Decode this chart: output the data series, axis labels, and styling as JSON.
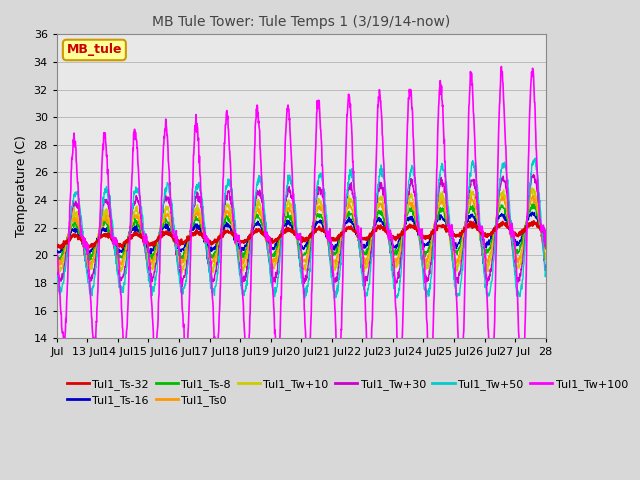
{
  "title": "MB Tule Tower: Tule Temps 1 (3/19/14-now)",
  "ylabel": "Temperature (C)",
  "ylim": [
    14,
    36
  ],
  "yticks": [
    14,
    16,
    18,
    20,
    22,
    24,
    26,
    28,
    30,
    32,
    34,
    36
  ],
  "xlabel_ticks": [
    "Jul",
    "13 Jul",
    "14 Jul",
    "15 Jul",
    "16 Jul",
    "17 Jul",
    "18 Jul",
    "19 Jul",
    "20 Jul",
    "21 Jul",
    "22 Jul",
    "23 Jul",
    "24 Jul",
    "25 Jul",
    "26 Jul",
    "27 Jul",
    "28"
  ],
  "series": [
    {
      "label": "Tul1_Ts-32",
      "color": "#dd0000",
      "lw": 1.5,
      "zorder": 6
    },
    {
      "label": "Tul1_Ts-16",
      "color": "#0000cc",
      "lw": 1.0,
      "zorder": 4
    },
    {
      "label": "Tul1_Ts-8",
      "color": "#00bb00",
      "lw": 1.0,
      "zorder": 4
    },
    {
      "label": "Tul1_Ts0",
      "color": "#ff9900",
      "lw": 1.0,
      "zorder": 4
    },
    {
      "label": "Tul1_Tw+10",
      "color": "#cccc00",
      "lw": 1.0,
      "zorder": 4
    },
    {
      "label": "Tul1_Tw+30",
      "color": "#cc00cc",
      "lw": 1.0,
      "zorder": 4
    },
    {
      "label": "Tul1_Tw+50",
      "color": "#00cccc",
      "lw": 1.0,
      "zorder": 5
    },
    {
      "label": "Tul1_Tw+100",
      "color": "#ff00ff",
      "lw": 1.2,
      "zorder": 7
    }
  ],
  "bg_color": "#d8d8d8",
  "plot_bg_color": "#e8e8e8",
  "legend_box_facecolor": "#ffff99",
  "legend_box_edgecolor": "#cc9900",
  "legend_label": "MB_tule",
  "legend_label_color": "#cc0000",
  "figsize": [
    6.4,
    4.8
  ],
  "dpi": 100
}
